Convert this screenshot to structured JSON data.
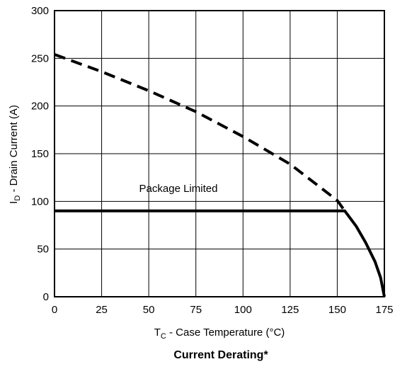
{
  "chart_data": {
    "type": "line",
    "title": "Current Derating*",
    "xlabel": {
      "prefix": "T",
      "sub": "C",
      "text": " - Case Temperature (°C)"
    },
    "ylabel": {
      "prefix": "I",
      "sub": "D",
      "text": " -  Drain Current (A)"
    },
    "xlim": [
      0,
      175
    ],
    "ylim": [
      0,
      300
    ],
    "xticks": [
      "0",
      "25",
      "50",
      "75",
      "100",
      "125",
      "150",
      "175"
    ],
    "yticks": [
      "0",
      "50",
      "100",
      "150",
      "200",
      "250",
      "300"
    ],
    "grid": true,
    "annotation": "Package Limited",
    "series": [
      {
        "style": "dashed",
        "x": [
          0,
          25,
          50,
          75,
          100,
          125,
          150,
          154
        ],
        "y": [
          254,
          236,
          216,
          194,
          168,
          139,
          101,
          90
        ]
      },
      {
        "style": "solid",
        "x": [
          0,
          154,
          160,
          165,
          170,
          173,
          175
        ],
        "y": [
          90,
          90,
          74,
          57,
          37,
          20,
          0
        ]
      }
    ]
  }
}
